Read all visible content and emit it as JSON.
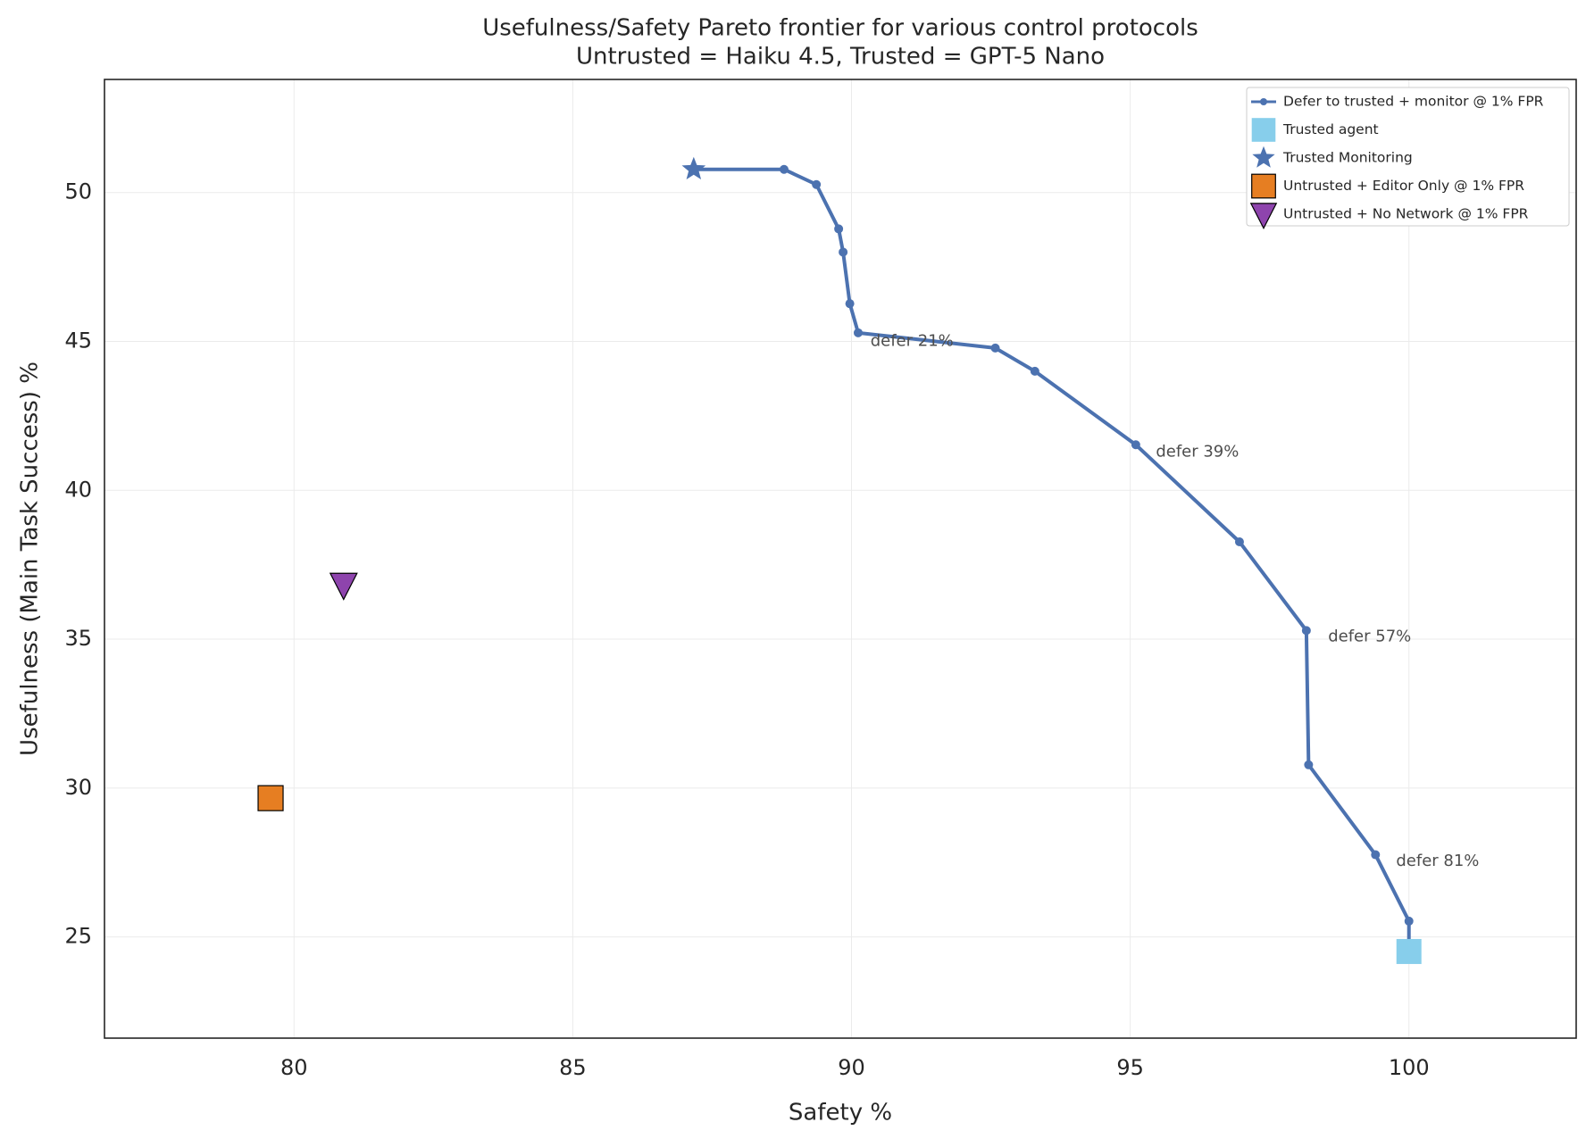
{
  "chart_data": {
    "type": "line",
    "title": "Usefulness/Safety Pareto frontier for various control protocols",
    "subtitle": "Untrusted = Haiku 4.5, Trusted = GPT-5 Nano",
    "x_label": "Safety %",
    "y_label": "Usefulness (Main Task Success) %",
    "xlim": [
      76.6,
      103
    ],
    "ylim": [
      21.6,
      53.8
    ],
    "xticks": [
      80,
      85,
      90,
      95,
      100
    ],
    "yticks": [
      25,
      30,
      35,
      40,
      45,
      50
    ],
    "grid": true,
    "legend": "upper right",
    "series": [
      {
        "name": "Defer to trusted + monitor @ 1% FPR",
        "color": "#4c72b0",
        "marker": "dot",
        "line": true,
        "x": [
          87.17,
          88.79,
          89.37,
          89.77,
          89.85,
          89.97,
          90.12,
          92.58,
          93.29,
          95.1,
          96.96,
          98.16,
          98.2,
          99.4,
          100,
          100
        ],
        "values": [
          50.78,
          50.78,
          50.27,
          48.78,
          48.0,
          46.27,
          45.29,
          44.78,
          44.0,
          41.53,
          38.27,
          35.29,
          30.78,
          27.76,
          25.53,
          24.51
        ]
      },
      {
        "name": "Trusted agent",
        "color": "#87ceeb",
        "marker": "square-plain",
        "x": [
          100
        ],
        "values": [
          24.51
        ]
      },
      {
        "name": "Trusted Monitoring",
        "color": "#4c72b0",
        "marker": "star",
        "x": [
          87.17
        ],
        "values": [
          50.78
        ]
      },
      {
        "name": "Untrusted + Editor Only @ 1% FPR",
        "color": "#e67e22",
        "marker": "square",
        "x": [
          79.58
        ],
        "values": [
          29.66
        ]
      },
      {
        "name": "Untrusted + No Network @ 1% FPR",
        "color": "#8e44ad",
        "marker": "triangle-down",
        "x": [
          80.89
        ],
        "values": [
          36.83
        ]
      }
    ],
    "annotations": [
      {
        "text": "defer 21%",
        "x": 90.34,
        "y": 45.0
      },
      {
        "text": "defer 39%",
        "x": 95.46,
        "y": 41.29
      },
      {
        "text": "defer 57%",
        "x": 98.55,
        "y": 35.07
      },
      {
        "text": "defer 81%",
        "x": 99.77,
        "y": 27.53
      }
    ]
  }
}
